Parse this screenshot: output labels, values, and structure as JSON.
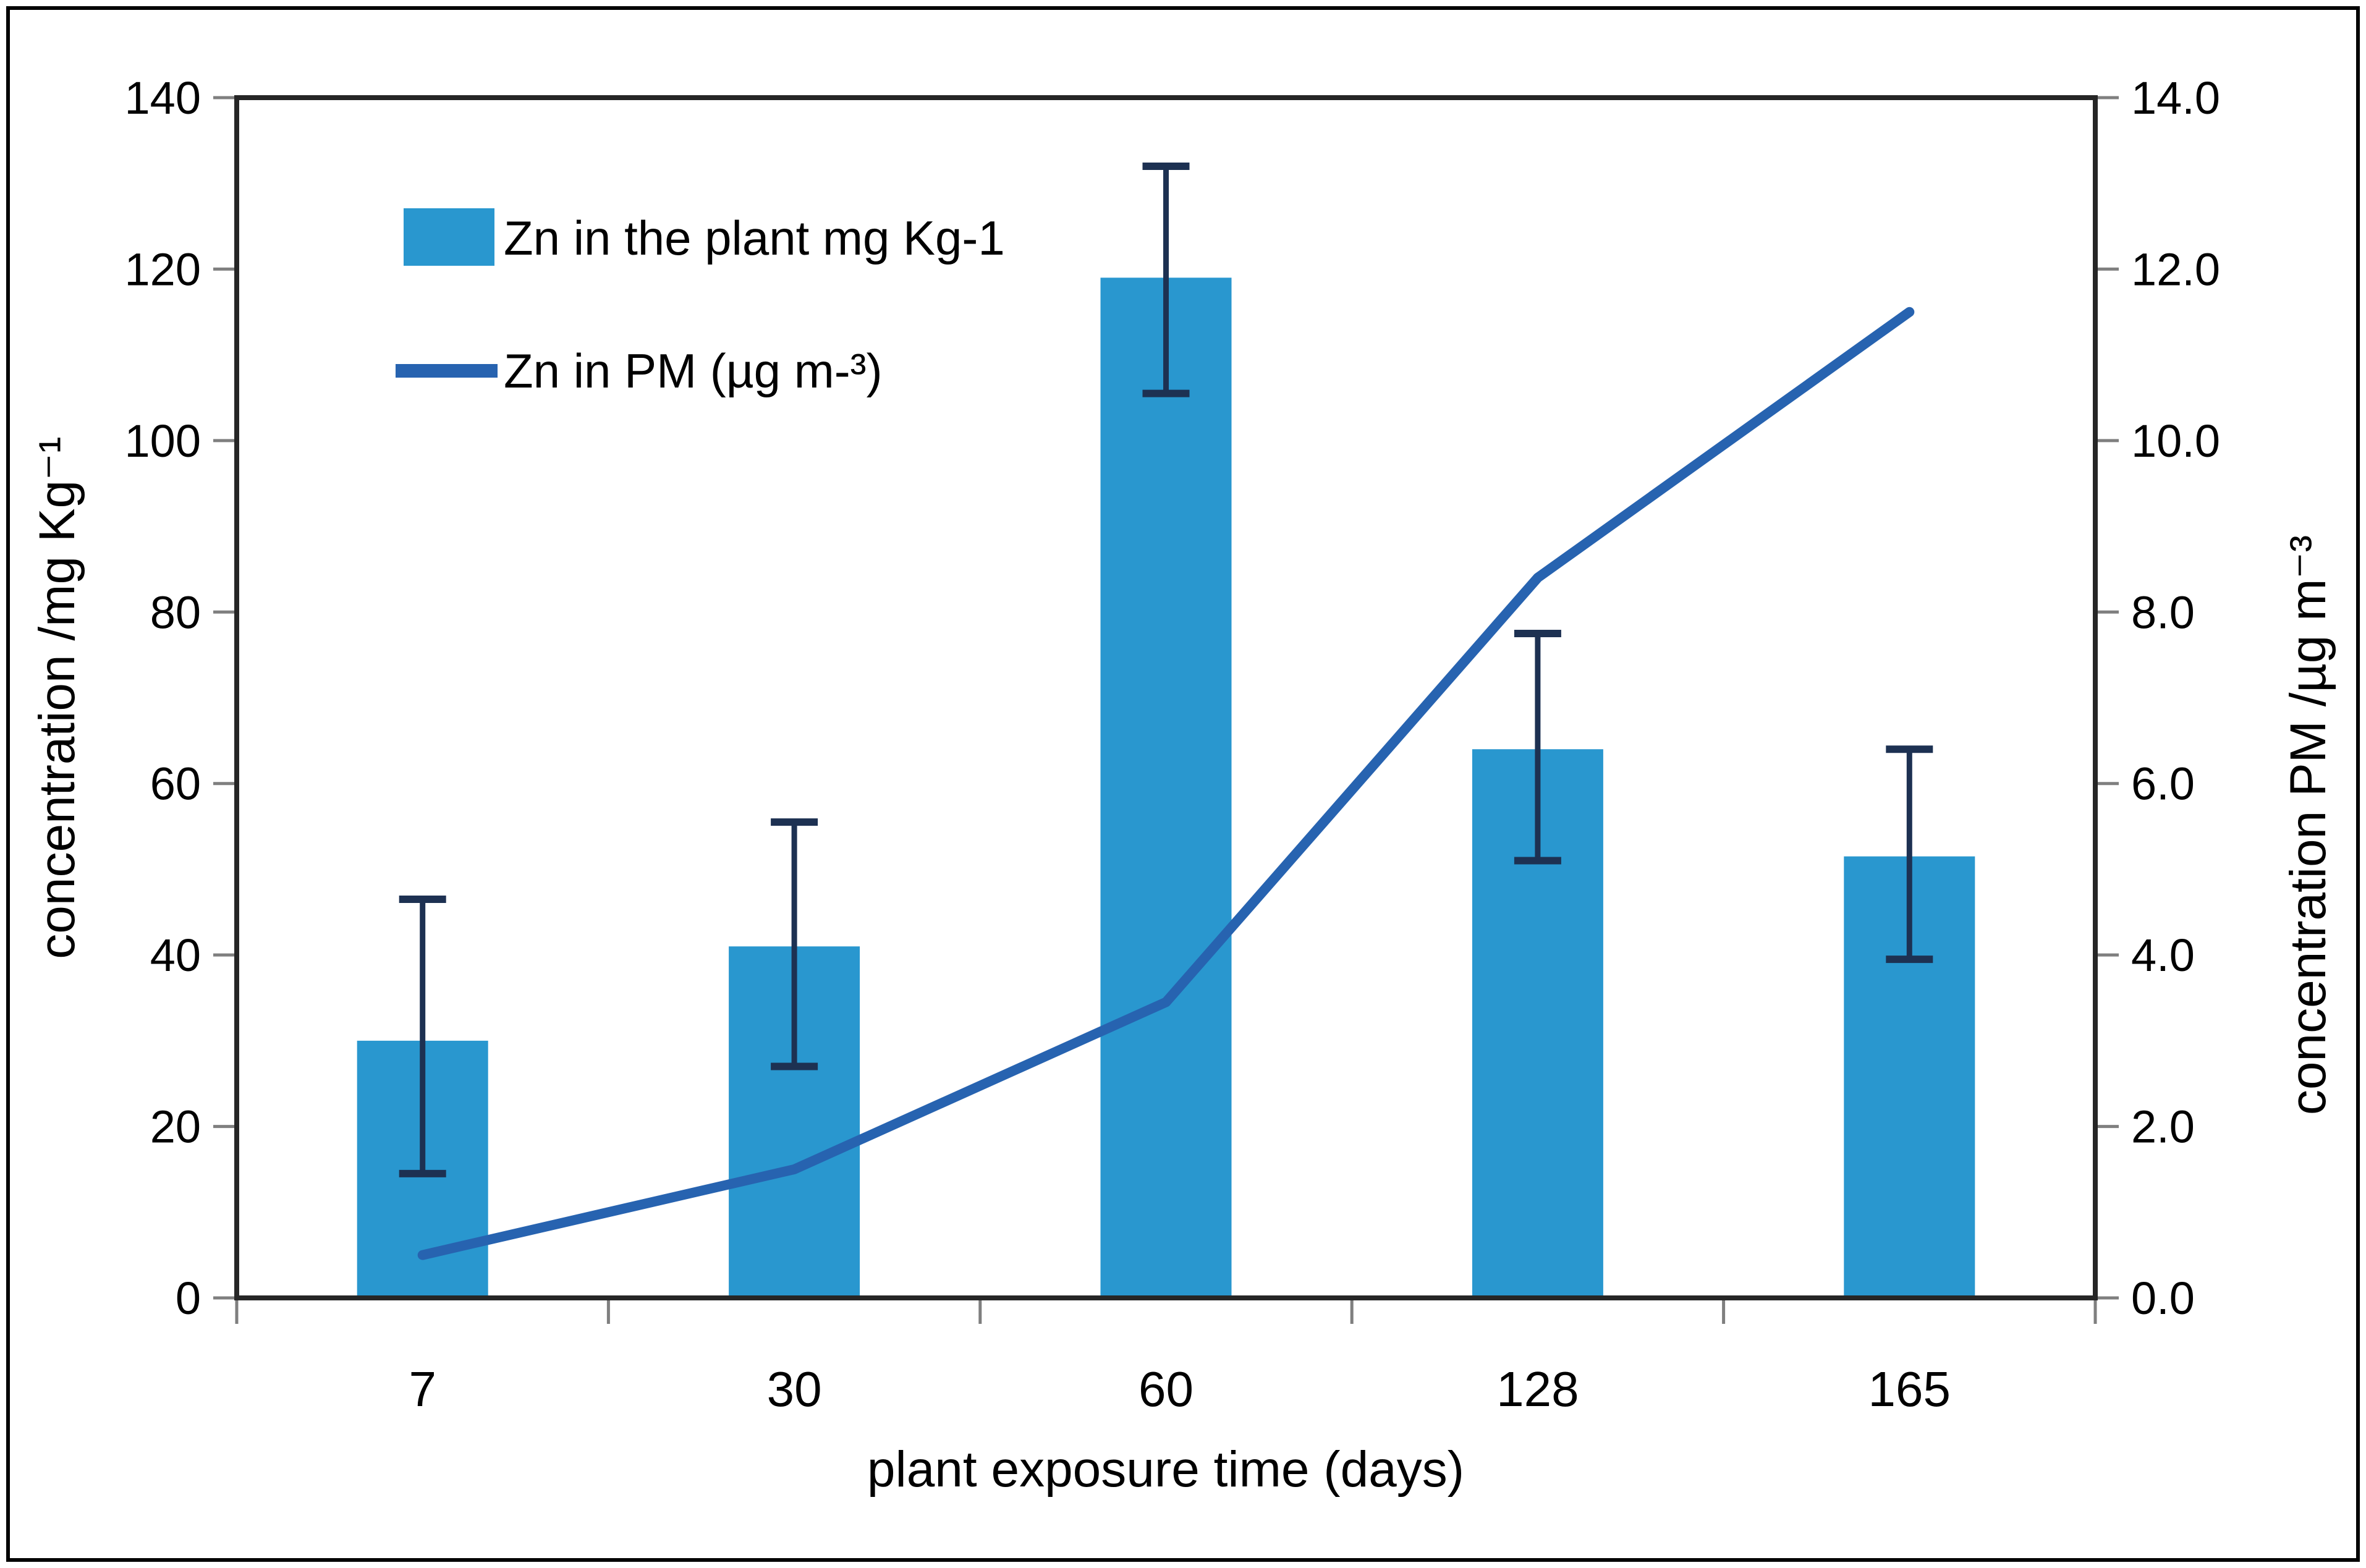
{
  "chart_data": {
    "type": "bar+line",
    "categories": [
      "7",
      "30",
      "60",
      "128",
      "165"
    ],
    "series": [
      {
        "name": "Zn in the plant mg Kg-1",
        "type": "bar",
        "axis": "left",
        "values": [
          30,
          41,
          119,
          64,
          51.5
        ],
        "error_low": [
          14.5,
          27,
          105.5,
          51,
          39.5
        ],
        "error_high": [
          46.5,
          55.5,
          132,
          77.5,
          64
        ]
      },
      {
        "name": "Zn in PM (µg m-³)",
        "type": "line",
        "axis": "right",
        "values": [
          0.5,
          1.5,
          3.45,
          8.4,
          11.5
        ]
      }
    ],
    "left_axis": {
      "label": "concentration /mg Kg⁻¹",
      "min": 0,
      "max": 140,
      "step": 20,
      "tick_labels": [
        "0",
        "20",
        "40",
        "60",
        "80",
        "100",
        "120",
        "140"
      ]
    },
    "right_axis": {
      "label": "concentration PM /µg m⁻³",
      "min": 0,
      "max": 14,
      "step": 2,
      "tick_labels": [
        "0.0",
        "2.0",
        "4.0",
        "6.0",
        "8.0",
        "10.0",
        "12.0",
        "14.0"
      ]
    },
    "x_axis": {
      "label": "plant exposure time (days)"
    },
    "legend_position": "top-left-inside",
    "grid": false,
    "colors": {
      "bar": "#2997CF",
      "line": "#2763B0",
      "error": "#1d3152",
      "axis": "#262626",
      "tick": "#7f7f7f"
    }
  }
}
